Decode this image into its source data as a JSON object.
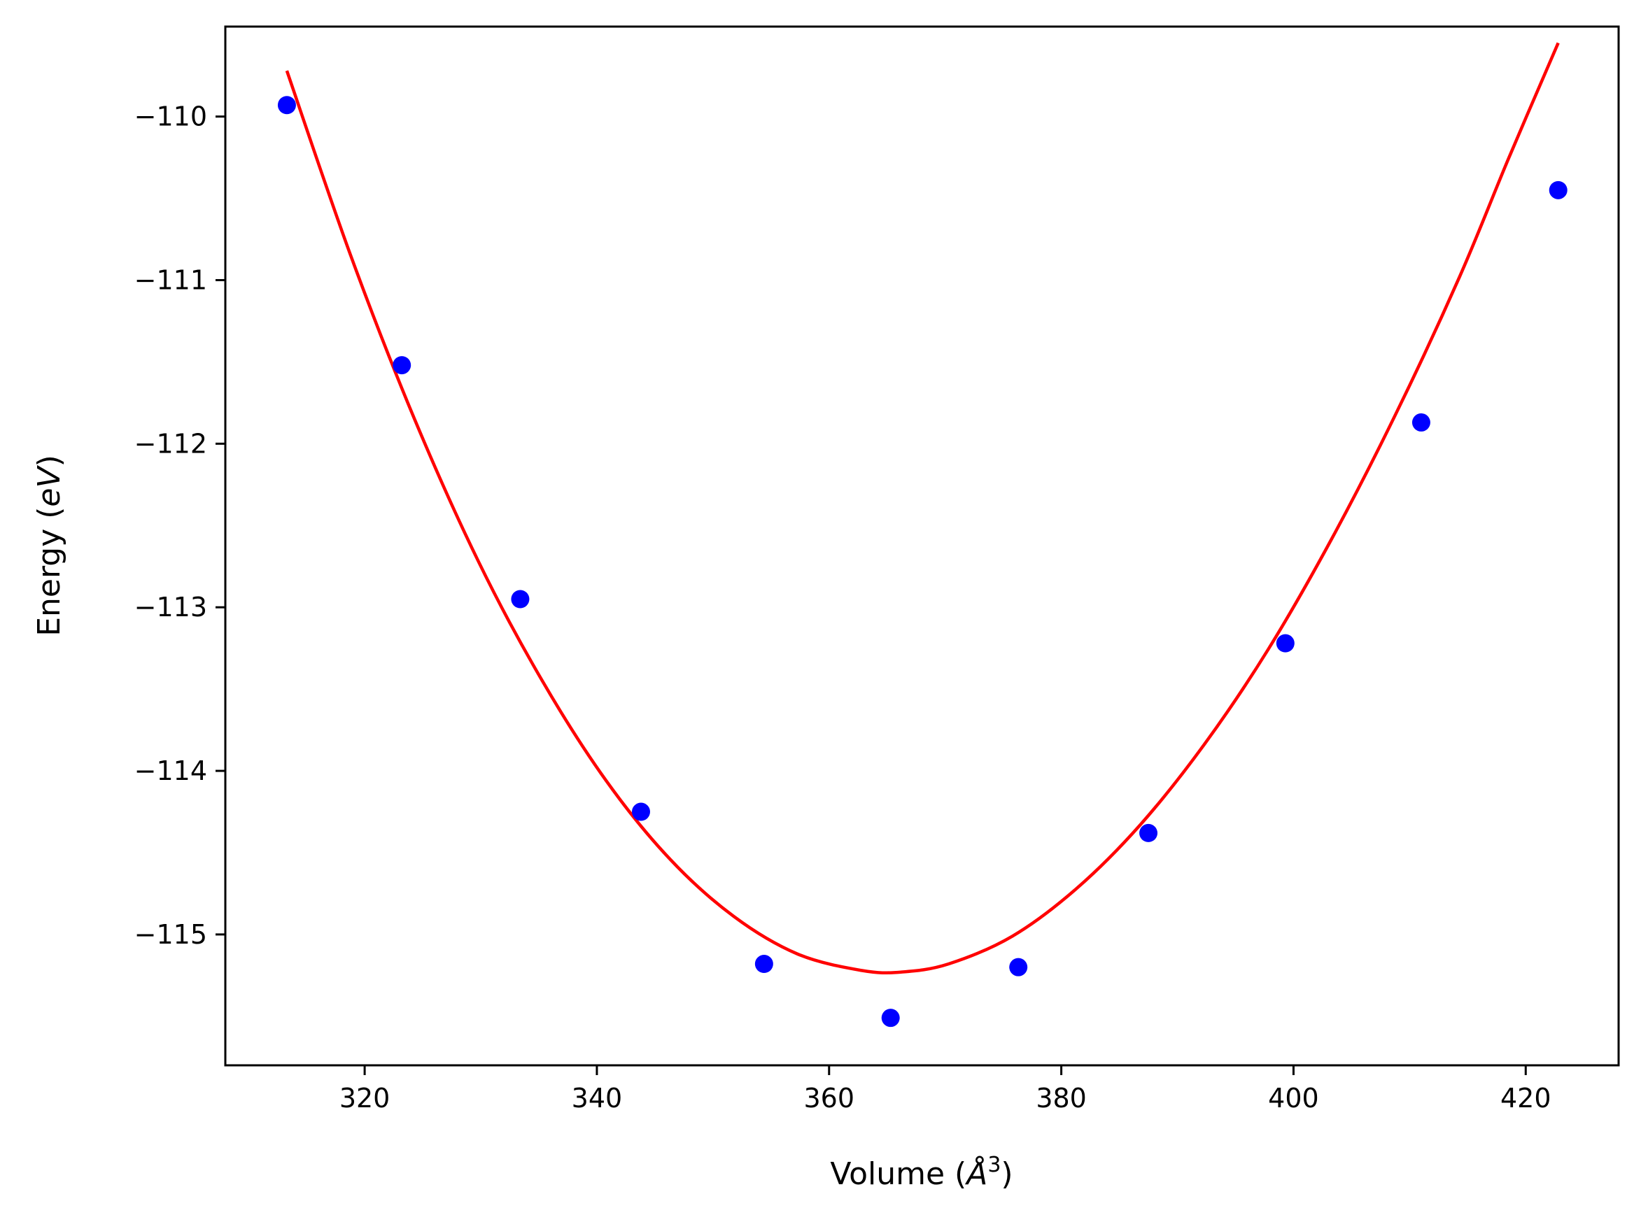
{
  "chart_data": {
    "type": "scatter",
    "title": "",
    "xlabel": "Volume ($\\AA^3$)",
    "xlabel_parts": {
      "pre": "Volume (",
      "sym": "Å",
      "sup": "3",
      "post": ")"
    },
    "ylabel": "Energy ($eV$)",
    "ylabel_parts": {
      "pre": "Energy (",
      "ital": "eV",
      "post": ")"
    },
    "xlim": [
      308,
      428
    ],
    "ylim": [
      -115.8,
      -109.45
    ],
    "xticks": [
      320,
      340,
      360,
      380,
      400,
      420
    ],
    "xtick_labels": [
      "320",
      "340",
      "360",
      "380",
      "400",
      "420"
    ],
    "yticks": [
      -115,
      -114,
      -113,
      -112,
      -111,
      -110
    ],
    "ytick_labels": [
      "−115",
      "−114",
      "−113",
      "−112",
      "−111",
      "−110"
    ],
    "grid": false,
    "legend": "none",
    "series": [
      {
        "kind": "points",
        "color": "#0000ff",
        "x": [
          313.3,
          323.2,
          333.4,
          343.8,
          354.4,
          365.3,
          376.3,
          387.5,
          399.3,
          411.0,
          422.8
        ],
        "y": [
          -109.93,
          -111.52,
          -112.95,
          -114.25,
          -115.18,
          -115.51,
          -115.2,
          -114.38,
          -113.22,
          -111.87,
          -110.45
        ]
      },
      {
        "kind": "fit-curve",
        "color": "#ff0000",
        "x": [
          313.3,
          318.8,
          324.3,
          329.8,
          335.3,
          340.8,
          346.3,
          351.8,
          357.3,
          362.8,
          366.2,
          370.3,
          375.8,
          381.3,
          386.8,
          392.3,
          397.8,
          403.3,
          408.8,
          414.3,
          418.5,
          422.8
        ],
        "y": [
          -109.72,
          -110.85,
          -111.85,
          -112.72,
          -113.45,
          -114.06,
          -114.54,
          -114.89,
          -115.12,
          -115.22,
          -115.23,
          -115.18,
          -115.01,
          -114.72,
          -114.33,
          -113.84,
          -113.26,
          -112.58,
          -111.82,
          -110.98,
          -110.26,
          -109.55
        ]
      }
    ]
  }
}
